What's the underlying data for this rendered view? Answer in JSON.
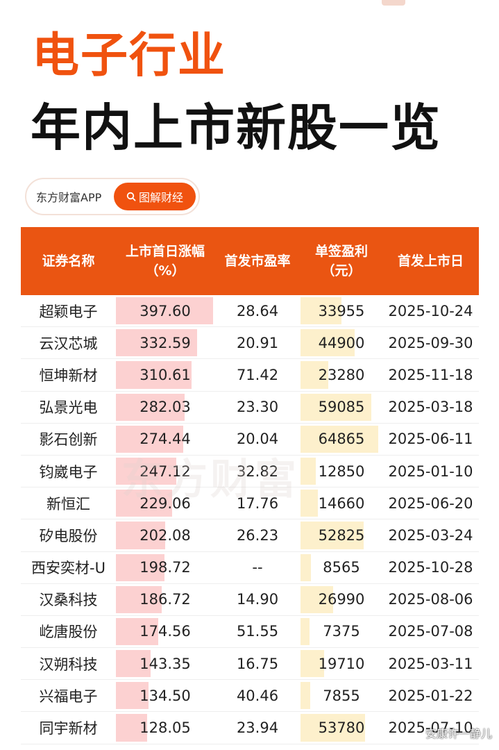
{
  "title_line1": "电子行业",
  "title_line2": "年内上市新股一览",
  "brand": {
    "name": "东方财富APP",
    "button_label": "图解财经",
    "button_icon": "search-icon"
  },
  "watermark": "东方财富",
  "signature": "安康许一静儿",
  "colors": {
    "accent": "#ea5512",
    "title_orange": "#f0520f",
    "pct_bar": "#fcd1d1",
    "earn_bar": "#fdf0cc"
  },
  "chart_data": {
    "type": "table",
    "columns": [
      "证券名称",
      "上市首日涨幅\n（%）",
      "首发市盈率",
      "单签盈利\n（元）",
      "首发上市日"
    ],
    "rows": [
      {
        "name": "超颖电子",
        "first_day_gain": "397.60",
        "ipo_pe": "28.64",
        "lot_profit": "33955",
        "list_date": "2025-10-24"
      },
      {
        "name": "云汉芯城",
        "first_day_gain": "332.59",
        "ipo_pe": "20.91",
        "lot_profit": "44900",
        "list_date": "2025-09-30"
      },
      {
        "name": "恒坤新材",
        "first_day_gain": "310.61",
        "ipo_pe": "71.42",
        "lot_profit": "23280",
        "list_date": "2025-11-18"
      },
      {
        "name": "弘景光电",
        "first_day_gain": "282.03",
        "ipo_pe": "23.30",
        "lot_profit": "59085",
        "list_date": "2025-03-18"
      },
      {
        "name": "影石创新",
        "first_day_gain": "274.44",
        "ipo_pe": "20.04",
        "lot_profit": "64865",
        "list_date": "2025-06-11"
      },
      {
        "name": "钧崴电子",
        "first_day_gain": "247.12",
        "ipo_pe": "32.82",
        "lot_profit": "12850",
        "list_date": "2025-01-10"
      },
      {
        "name": "新恒汇",
        "first_day_gain": "229.06",
        "ipo_pe": "17.76",
        "lot_profit": "14660",
        "list_date": "2025-06-20"
      },
      {
        "name": "矽电股份",
        "first_day_gain": "202.08",
        "ipo_pe": "26.23",
        "lot_profit": "52825",
        "list_date": "2025-03-24"
      },
      {
        "name": "西安奕材-U",
        "first_day_gain": "198.72",
        "ipo_pe": "--",
        "lot_profit": "8565",
        "list_date": "2025-10-28"
      },
      {
        "name": "汉桑科技",
        "first_day_gain": "186.72",
        "ipo_pe": "14.90",
        "lot_profit": "26990",
        "list_date": "2025-08-06"
      },
      {
        "name": "屹唐股份",
        "first_day_gain": "174.56",
        "ipo_pe": "51.55",
        "lot_profit": "7375",
        "list_date": "2025-07-08"
      },
      {
        "name": "汉朔科技",
        "first_day_gain": "143.35",
        "ipo_pe": "16.75",
        "lot_profit": "19710",
        "list_date": "2025-03-11"
      },
      {
        "name": "兴福电子",
        "first_day_gain": "134.50",
        "ipo_pe": "40.46",
        "lot_profit": "7855",
        "list_date": "2025-01-22"
      },
      {
        "name": "同宇新材",
        "first_day_gain": "128.05",
        "ipo_pe": "23.94",
        "lot_profit": "53780",
        "list_date": "2025-07-10"
      }
    ]
  }
}
